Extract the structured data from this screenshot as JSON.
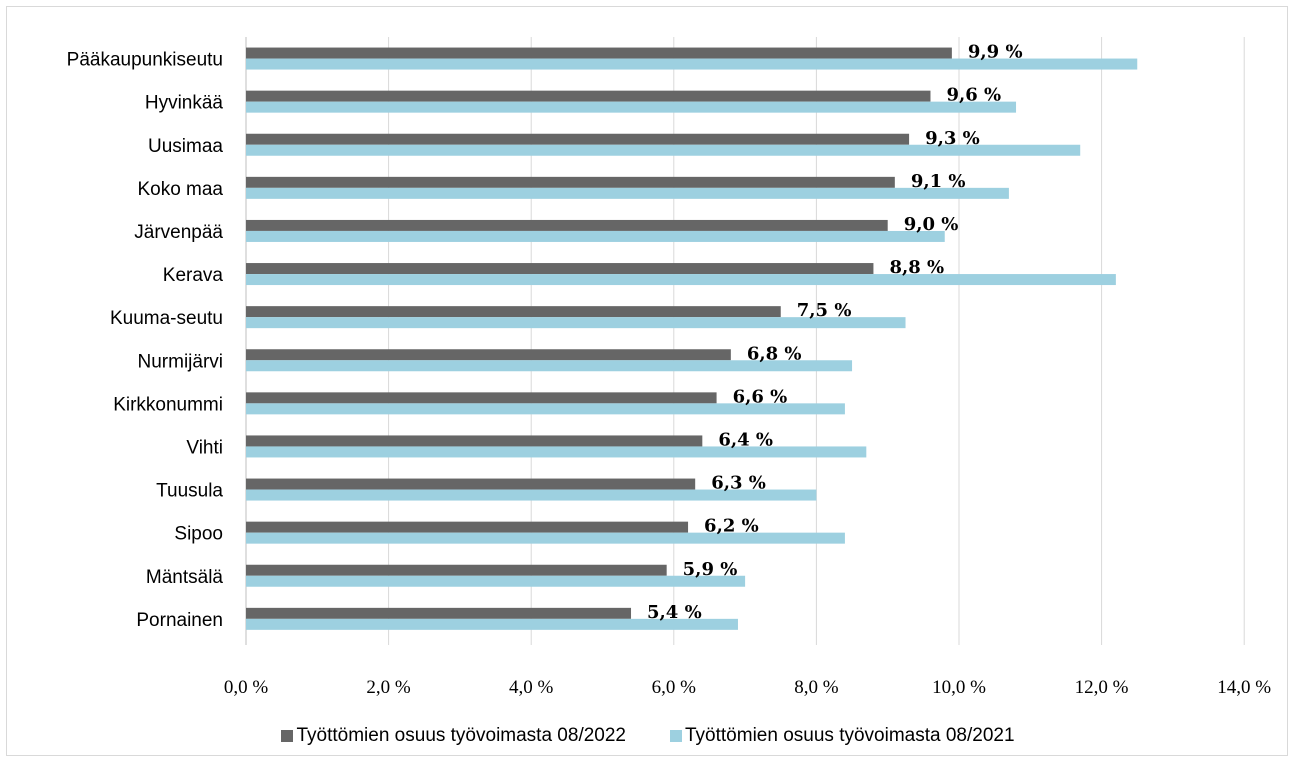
{
  "chart_data": {
    "type": "bar",
    "orientation": "horizontal",
    "categories": [
      "Pääkaupunkiseutu",
      "Hyvinkää",
      "Uusimaa",
      "Koko maa",
      "Järvenpää",
      "Kerava",
      "Kuuma-seutu",
      "Nurmijärvi",
      "Kirkkonummi",
      "Vihti",
      "Tuusula",
      "Sipoo",
      "Mäntsälä",
      "Pornainen"
    ],
    "series": [
      {
        "name": "Työttömien osuus työvoimasta 08/2022",
        "color": "#666666",
        "values": [
          9.9,
          9.6,
          9.3,
          9.1,
          9.0,
          8.8,
          7.5,
          6.8,
          6.6,
          6.4,
          6.3,
          6.2,
          5.9,
          5.4
        ],
        "data_labels": [
          "9,9 %",
          "9,6 %",
          "9,3 %",
          "9,1 %",
          "9,0 %",
          "8,8 %",
          "7,5 %",
          "6,8 %",
          "6,6 %",
          "6,4 %",
          "6,3 %",
          "6,2 %",
          "5,9 %",
          "5,4 %"
        ]
      },
      {
        "name": "Työttömien osuus työvoimasta 08/2021",
        "color": "#9dd0e0",
        "values": [
          12.5,
          10.8,
          11.7,
          10.7,
          9.8,
          12.2,
          9.25,
          8.5,
          8.4,
          8.7,
          8.0,
          8.4,
          7.0,
          6.9
        ]
      }
    ],
    "xlim": [
      0,
      14
    ],
    "x_ticks": [
      0,
      2,
      4,
      6,
      8,
      10,
      12,
      14
    ],
    "x_tick_labels": [
      "0,0 %",
      "2,0 %",
      "4,0 %",
      "6,0 %",
      "8,0 %",
      "10,0 %",
      "12,0 %",
      "14,0 %"
    ],
    "grid": "vertical",
    "legend_position": "bottom",
    "title": "",
    "xlabel": "",
    "ylabel": ""
  }
}
